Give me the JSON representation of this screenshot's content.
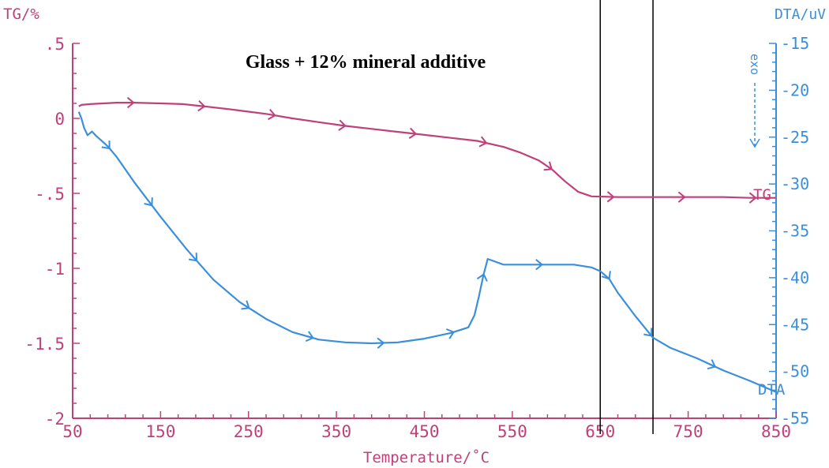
{
  "chart_data": {
    "type": "line",
    "title": "Glass + 12% mineral additive",
    "xlabel": "Temperature/˚C",
    "ylabel_left": "TG/%",
    "ylabel_right": "DTA/uV",
    "xlim": [
      50,
      850
    ],
    "ylim_left": [
      -2,
      0.5
    ],
    "ylim_right": [
      -55,
      -15
    ],
    "x_ticks": [
      "50",
      "150",
      "250",
      "350",
      "450",
      "550",
      "650",
      "750",
      "850"
    ],
    "y_left_ticks": [
      ".5",
      "0",
      "-.5",
      "-1",
      "-1.5",
      "-2"
    ],
    "y_right_ticks": [
      "-15",
      "-20",
      "-25",
      "-30",
      "-35",
      "-40",
      "-45",
      "-50",
      "-55"
    ],
    "exo_indicator": "exo",
    "vertical_markers": [
      650,
      710
    ],
    "grid": false,
    "series": [
      {
        "name": "TG",
        "axis": "left",
        "color": "#c0407a",
        "x": [
          57,
          60,
          70,
          85,
          100,
          120,
          150,
          175,
          200,
          230,
          250,
          270,
          300,
          330,
          360,
          390,
          420,
          450,
          480,
          510,
          540,
          560,
          580,
          595,
          610,
          625,
          640,
          670,
          700,
          730,
          760,
          790,
          820,
          850
        ],
        "y": [
          0.08,
          0.09,
          0.095,
          0.1,
          0.105,
          0.105,
          0.1,
          0.095,
          0.08,
          0.06,
          0.045,
          0.03,
          0.0,
          -0.025,
          -0.05,
          -0.07,
          -0.09,
          -0.11,
          -0.13,
          -0.15,
          -0.19,
          -0.23,
          -0.28,
          -0.34,
          -0.42,
          -0.49,
          -0.52,
          -0.525,
          -0.525,
          -0.525,
          -0.525,
          -0.525,
          -0.53,
          -0.53
        ]
      },
      {
        "name": "DTA",
        "axis": "right",
        "color": "#3a8fdc",
        "x": [
          57,
          60,
          63,
          67,
          72,
          77,
          82,
          90,
          100,
          120,
          150,
          180,
          210,
          240,
          270,
          300,
          330,
          360,
          390,
          420,
          450,
          480,
          500,
          507,
          512,
          517,
          522,
          528,
          540,
          560,
          590,
          620,
          640,
          650,
          660,
          670,
          690,
          710,
          730,
          760,
          790,
          820,
          850
        ],
        "y": [
          -22.3,
          -23.0,
          -24.0,
          -24.8,
          -24.4,
          -24.9,
          -25.3,
          -26.0,
          -27.1,
          -29.8,
          -33.5,
          -37.0,
          -40.2,
          -42.6,
          -44.4,
          -45.8,
          -46.6,
          -46.9,
          -47.0,
          -46.9,
          -46.5,
          -45.9,
          -45.3,
          -44.0,
          -42.0,
          -39.8,
          -38.0,
          -38.2,
          -38.6,
          -38.6,
          -38.6,
          -38.6,
          -38.9,
          -39.3,
          -40.1,
          -41.6,
          -44.1,
          -46.4,
          -47.5,
          -48.6,
          -49.9,
          -51.0,
          -52.2
        ]
      }
    ]
  },
  "texts": {
    "title": "Glass + 12% mineral additive",
    "ylabel_left": "TG/%",
    "ylabel_right": "DTA/uV",
    "xlabel": "Temperature/˚C",
    "tg_label": "TG",
    "dta_label": "DTA"
  }
}
